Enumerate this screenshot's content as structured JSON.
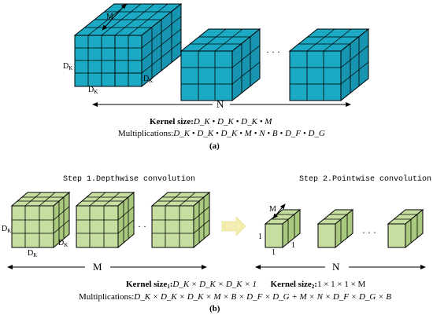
{
  "panel_a": {
    "label_M": "M",
    "label_DK": "D",
    "label_DK_sub": "K",
    "label_N": "N",
    "ellipsis": "· · ·",
    "kernel_size_label": "Kernel size:",
    "kernel_size_formula": "D_K • D_K • D_K • M",
    "multiplications_label": "Multiplications:",
    "multiplications_formula": "D_K • D_K • D_K • M • N • B • D_F • D_G",
    "caption": "(a)"
  },
  "panel_b": {
    "step1": "Step 1.Depthwise convolution",
    "step2": "Step 2.Pointwise convolution",
    "label_DK": "D",
    "label_DK_sub": "K",
    "label_M": "M",
    "label_N": "N",
    "label_one": "1",
    "ellipsis": "· · ·",
    "kernel_size1_label": "Kernel size",
    "kernel_size1_sub": "1",
    "kernel_size1_formula": "D_K × D_K × D_K × 1",
    "kernel_size2_label": "Kernel size",
    "kernel_size2_sub": "2",
    "kernel_size2_formula": "1 × 1 × 1 × M",
    "multiplications_label": "Multiplications:",
    "multiplications_formula": "D_K × D_K × D_K × M × B × D_F × D_G + M × N × D_F × D_G × B",
    "caption": "(b)"
  },
  "colors": {
    "blue_cube": "#1ba9c4",
    "blue_dark": "#1189a3",
    "green_cube": "#c6dea0",
    "green_dark": "#a9c97f",
    "arrow_yellow": "#f2ecb0"
  }
}
